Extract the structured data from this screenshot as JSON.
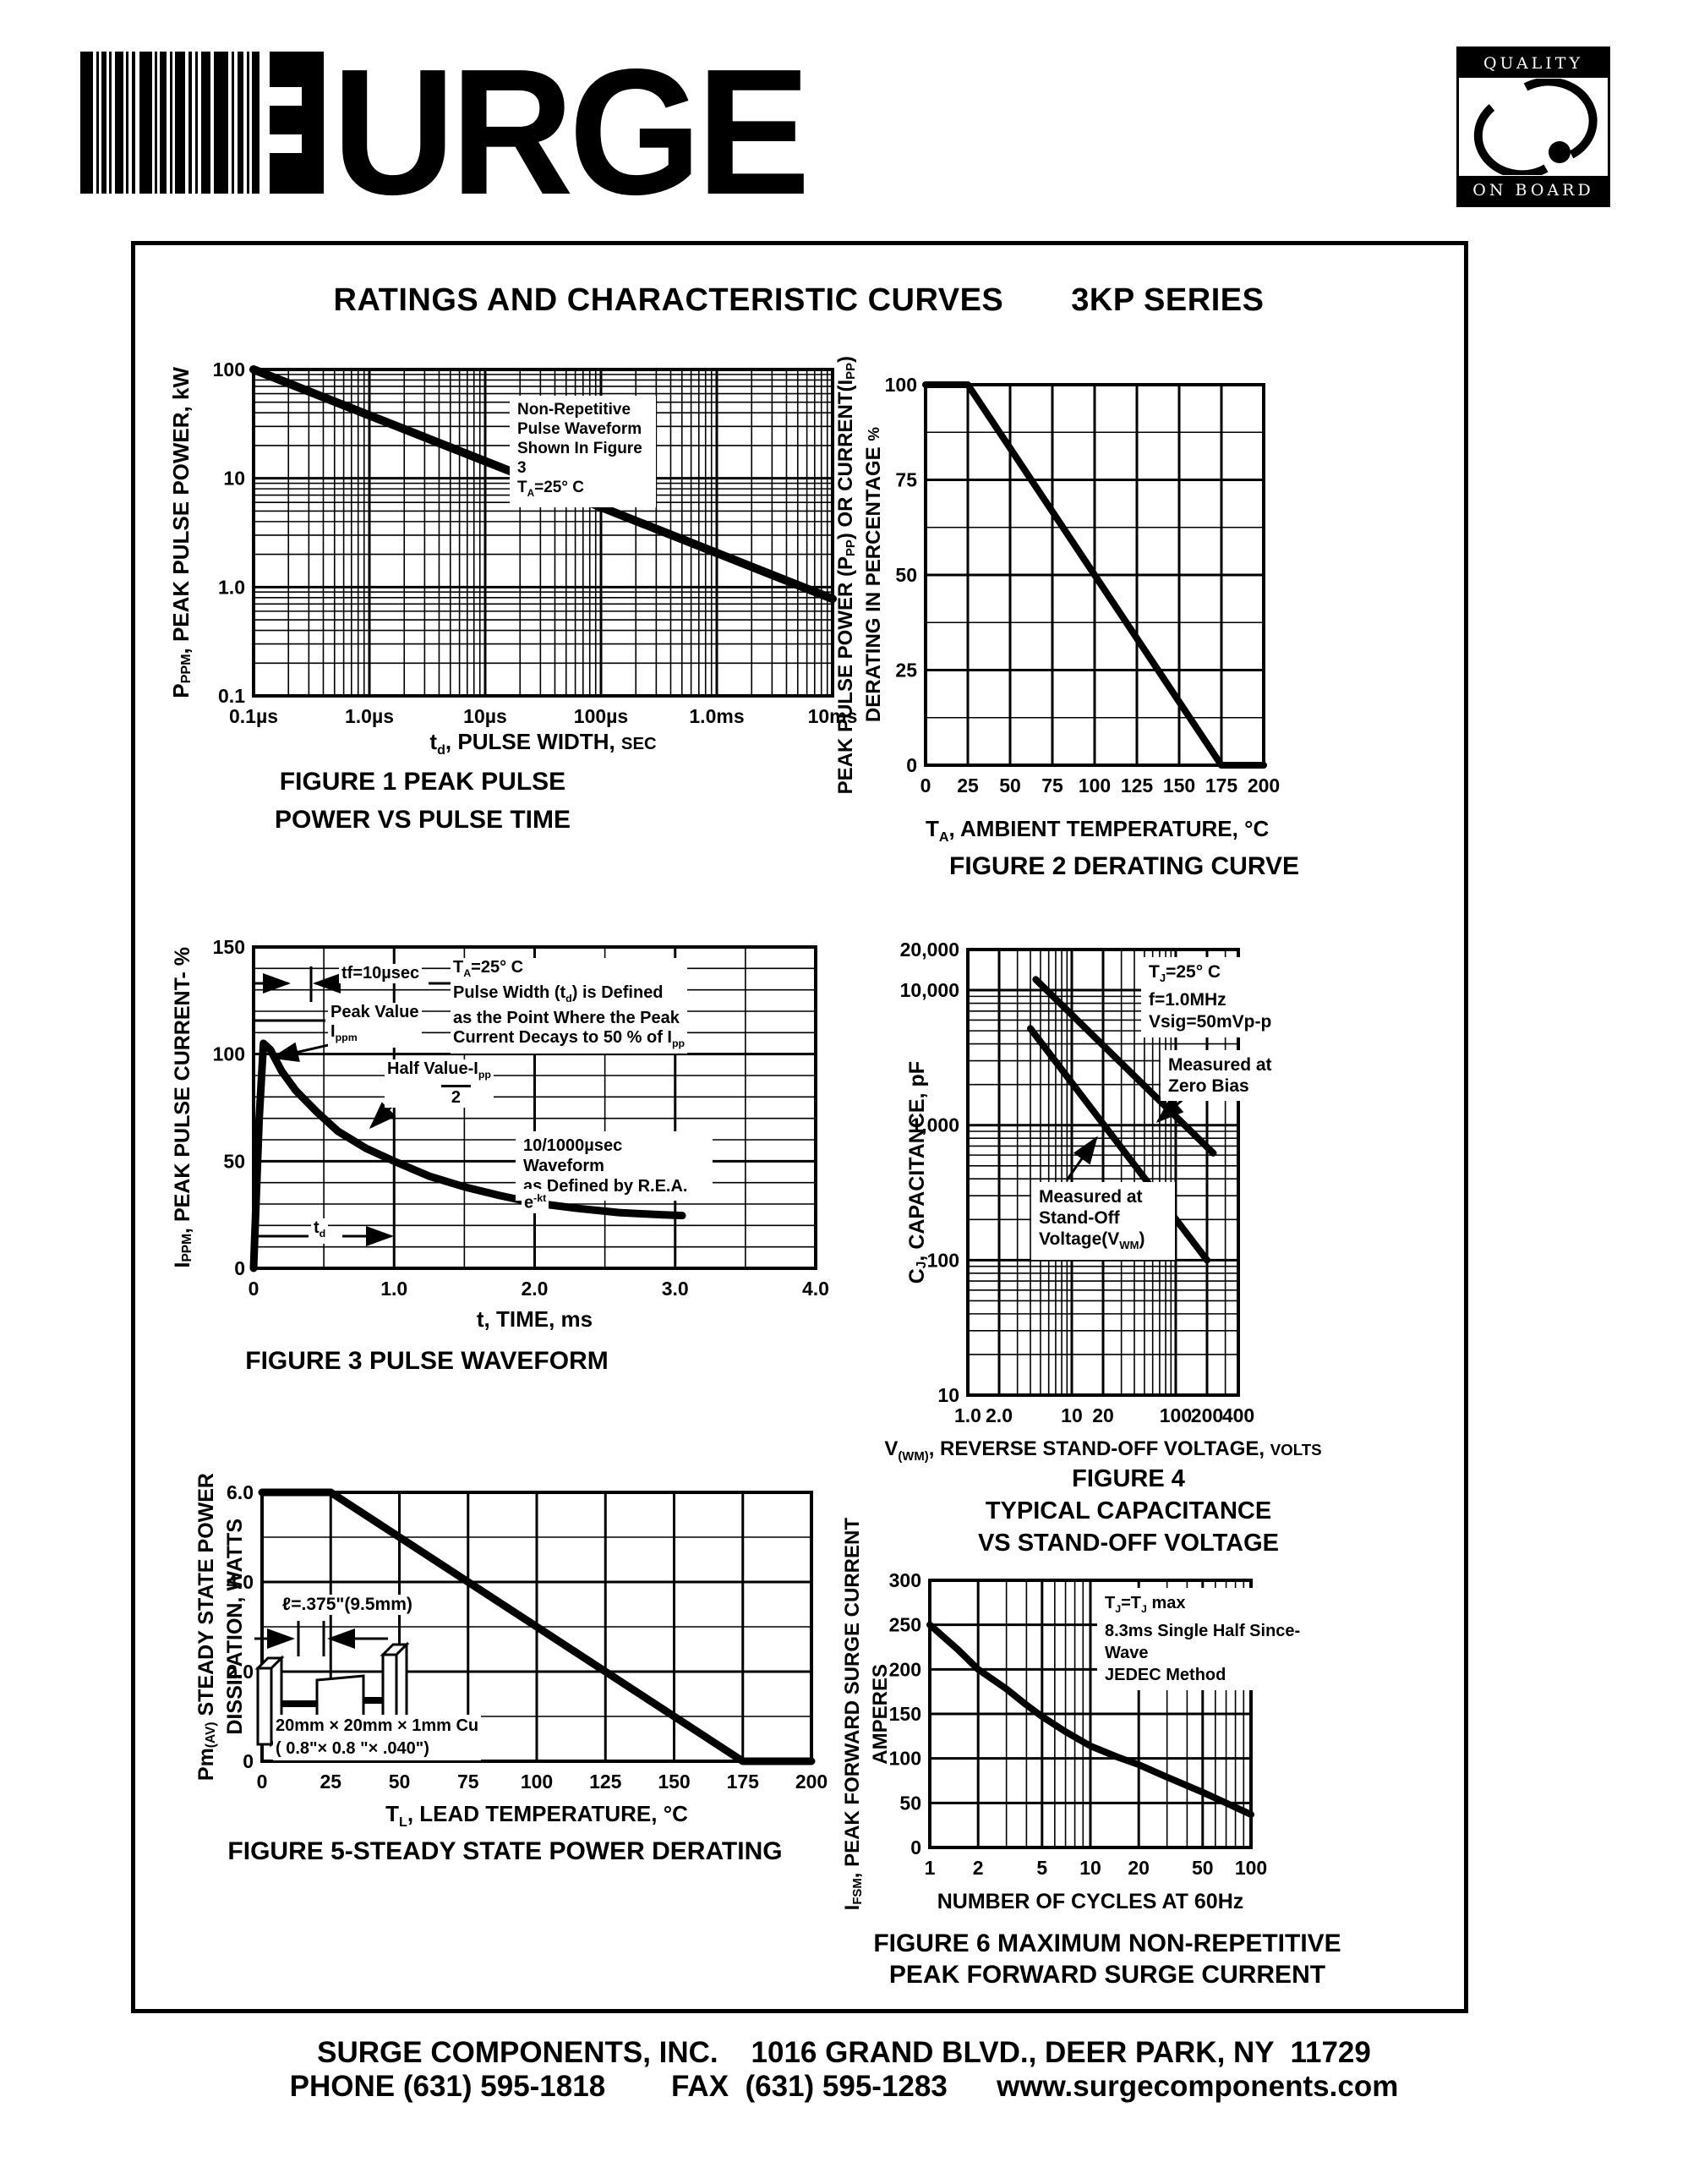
{
  "header": {
    "title_left": "RATINGS AND CHARACTERISTIC CURVES",
    "title_right": "3KP SERIES"
  },
  "logo": {
    "brand": "SURGE",
    "wordmark_text": "URGE"
  },
  "badge": {
    "top_label": "QUALITY",
    "bottom_label": "ON BOARD"
  },
  "footer": {
    "line1": "SURGE COMPONENTS, INC.    1016 GRAND BLVD., DEER PARK, NY  11729",
    "line2": "PHONE (631) 595-1818        FAX  (631) 595-1283      www.surgecomponents.com"
  },
  "chart_data": [
    {
      "type": "line",
      "figure": "Figure 1",
      "caption": [
        "FIGURE 1 PEAK PULSE",
        "POWER VS PULSE TIME"
      ],
      "xlabel": "t~d~, PULSE WIDTH, `SEC`",
      "ylabel": [
        "P~PPM~, PEAK PULSE POWER, kW"
      ],
      "xscale": "log",
      "yscale": "log",
      "xlim": [
        1e-07,
        0.01
      ],
      "ylim": [
        0.1,
        100
      ],
      "xticks": [
        {
          "v": 1e-07,
          "l": "0.1µs"
        },
        {
          "v": 1e-06,
          "l": "1.0µs"
        },
        {
          "v": 1e-05,
          "l": "10µs"
        },
        {
          "v": 0.0001,
          "l": "100µs"
        },
        {
          "v": 0.001,
          "l": "1.0ms"
        },
        {
          "v": 0.01,
          "l": "10ms"
        }
      ],
      "yticks": [
        {
          "v": 100,
          "l": "100"
        },
        {
          "v": 10,
          "l": "10"
        },
        {
          "v": 1,
          "l": "1.0"
        },
        {
          "v": 0.1,
          "l": "0.1"
        }
      ],
      "series": [
        {
          "name": "peak-pulse-power-vs-pulse-width",
          "points": [
            [
              1e-07,
              100
            ],
            [
              0.01,
              0.78
            ]
          ]
        }
      ],
      "annotations": [
        {
          "lines": [
            "Non-Repetitive",
            "Pulse Waveform",
            "Shown In Figure 3",
            "T~A~=25° C"
          ]
        }
      ]
    },
    {
      "type": "line",
      "figure": "Figure 2",
      "caption": [
        "FIGURE 2 DERATING CURVE"
      ],
      "xlabel": "T~A~, AMBIENT  TEMPERATURE, °C",
      "ylabel": [
        "PEAK PULSE POWER (P~PP~) OR CURRENT(I~PP~)",
        "DERATING IN PERCENTAGE `%`"
      ],
      "xscale": "linear",
      "yscale": "linear",
      "xlim": [
        0,
        200
      ],
      "ylim": [
        0,
        100
      ],
      "xticks": [
        {
          "v": 0,
          "l": "0"
        },
        {
          "v": 25,
          "l": "25"
        },
        {
          "v": 50,
          "l": "50"
        },
        {
          "v": 75,
          "l": "75"
        },
        {
          "v": 100,
          "l": "100"
        },
        {
          "v": 125,
          "l": "125"
        },
        {
          "v": 150,
          "l": "150"
        },
        {
          "v": 175,
          "l": "175"
        },
        {
          "v": 200,
          "l": "200"
        }
      ],
      "yticks": [
        {
          "v": 100,
          "l": "100"
        },
        {
          "v": 75,
          "l": "75"
        },
        {
          "v": 50,
          "l": "50"
        },
        {
          "v": 25,
          "l": "25"
        },
        {
          "v": 0,
          "l": "0"
        }
      ],
      "yminor": 12.5,
      "series": [
        {
          "name": "derating-curve",
          "points": [
            [
              0,
              100
            ],
            [
              25,
              100
            ],
            [
              175,
              0
            ],
            [
              200,
              0
            ]
          ]
        }
      ],
      "annotations": []
    },
    {
      "type": "line",
      "figure": "Figure 3",
      "caption": [
        "FIGURE 3  PULSE WAVEFORM"
      ],
      "xlabel": "t, TIME, ms",
      "ylabel": [
        "I~PPM~, PEAK PULSE CURRENT- %"
      ],
      "xscale": "linear",
      "yscale": "linear",
      "xlim": [
        0,
        4
      ],
      "ylim": [
        0,
        150
      ],
      "xticks": [
        {
          "v": 0,
          "l": "0"
        },
        {
          "v": 1,
          "l": "1.0"
        },
        {
          "v": 2,
          "l": "2.0"
        },
        {
          "v": 3,
          "l": "3.0"
        },
        {
          "v": 4,
          "l": "4.0"
        }
      ],
      "yticks": [
        {
          "v": 150,
          "l": "150"
        },
        {
          "v": 100,
          "l": "100"
        },
        {
          "v": 50,
          "l": "50"
        },
        {
          "v": 0,
          "l": "0"
        }
      ],
      "xminor": 0.5,
      "yminor": 10,
      "series": [
        {
          "name": "10/1000usec-pulse-waveform",
          "points": [
            [
              0,
              0
            ],
            [
              0.04,
              70
            ],
            [
              0.07,
              105
            ],
            [
              0.12,
              102
            ],
            [
              0.2,
              92
            ],
            [
              0.3,
              83
            ],
            [
              0.45,
              73
            ],
            [
              0.6,
              64
            ],
            [
              0.8,
              56
            ],
            [
              1,
              50
            ],
            [
              1.25,
              43
            ],
            [
              1.5,
              38
            ],
            [
              1.75,
              34
            ],
            [
              2,
              30.5
            ],
            [
              2.3,
              28
            ],
            [
              2.6,
              26
            ],
            [
              2.9,
              25
            ],
            [
              3.05,
              24.6
            ]
          ]
        }
      ],
      "annotations": [
        {
          "lines": [
            "tf=10µsec"
          ]
        },
        {
          "lines": [
            "Peak Value",
            "I~ppm~"
          ]
        },
        {
          "lines": [
            "Half Value-I~pp~",
            "2"
          ],
          "frac": true
        },
        {
          "lines": [
            "T~A~=25° C",
            "Pulse Width (t~d~) is Defined",
            "as the Point Where the Peak",
            "Current Decays to 50 % of I~pp~"
          ]
        },
        {
          "lines": [
            "10/1000µsec Waveform",
            "as Defined by R.E.A."
          ]
        },
        {
          "lines": [
            "e^-kt^"
          ]
        },
        {
          "lines": [
            "t~d~"
          ]
        }
      ]
    },
    {
      "type": "line",
      "figure": "Figure 4",
      "caption": [
        "FIGURE 4",
        "TYPICAL CAPACITANCE",
        "VS STAND-OFF VOLTAGE"
      ],
      "xlabel": "V~(WM)~, REVERSE STAND-OFF VOLTAGE, `VOLTS`",
      "ylabel": [
        "C~J~, CAPACITANCE, pF"
      ],
      "xscale": "log",
      "yscale": "log",
      "xlim": [
        1,
        400
      ],
      "ylim": [
        10,
        20000
      ],
      "xticks": [
        {
          "v": 1,
          "l": "1.0"
        },
        {
          "v": 2,
          "l": "2.0"
        },
        {
          "v": 10,
          "l": "10"
        },
        {
          "v": 20,
          "l": "20"
        },
        {
          "v": 100,
          "l": "100"
        },
        {
          "v": 200,
          "l": "200"
        },
        {
          "v": 400,
          "l": "400"
        }
      ],
      "yticks": [
        {
          "v": 20000,
          "l": "20,000"
        },
        {
          "v": 10000,
          "l": "10,000"
        },
        {
          "v": 1000,
          "l": "1,000"
        },
        {
          "v": 100,
          "l": "100"
        },
        {
          "v": 10,
          "l": "10"
        }
      ],
      "series": [
        {
          "name": "measured-at-zero-bias",
          "points": [
            [
              4.5,
              12000
            ],
            [
              230,
              620
            ]
          ]
        },
        {
          "name": "measured-at-stand-off-voltage",
          "points": [
            [
              4,
              5200
            ],
            [
              200,
              100
            ]
          ]
        }
      ],
      "annotations": [
        {
          "lines": [
            "T~J~=25° C",
            "f=1.0MHz",
            "Vsig=50mVp-p"
          ]
        },
        {
          "lines": [
            "Measured at",
            "Zero Bias"
          ]
        },
        {
          "lines": [
            "Measured at",
            "Stand-Off",
            "Voltage(V~WM~)"
          ]
        }
      ]
    },
    {
      "type": "line",
      "figure": "Figure 5",
      "caption": [
        "FIGURE 5-STEADY STATE POWER DERATING"
      ],
      "xlabel": "T~L~, LEAD  TEMPERATURE, °C",
      "ylabel": [
        "Pm~(AV)~ STEADY STATE POWER",
        "DISSIPATION, WATTS"
      ],
      "xscale": "linear",
      "yscale": "linear",
      "xlim": [
        0,
        200
      ],
      "ylim": [
        0,
        6
      ],
      "xticks": [
        {
          "v": 0,
          "l": "0"
        },
        {
          "v": 25,
          "l": "25"
        },
        {
          "v": 50,
          "l": "50"
        },
        {
          "v": 75,
          "l": "75"
        },
        {
          "v": 100,
          "l": "100"
        },
        {
          "v": 125,
          "l": "125"
        },
        {
          "v": 150,
          "l": "150"
        },
        {
          "v": 175,
          "l": "175"
        },
        {
          "v": 200,
          "l": "200"
        }
      ],
      "yticks": [
        {
          "v": 6,
          "l": "6.0"
        },
        {
          "v": 4,
          "l": "4.0"
        },
        {
          "v": 2,
          "l": "2.0"
        },
        {
          "v": 0,
          "l": "0"
        }
      ],
      "yminor": 1,
      "series": [
        {
          "name": "steady-state-power-derating",
          "points": [
            [
              0,
              6
            ],
            [
              25,
              6
            ],
            [
              175,
              0
            ],
            [
              200,
              0
            ]
          ]
        }
      ],
      "annotations": [
        {
          "lines": [
            "ℓ=.375\"(9.5mm)"
          ]
        },
        {
          "lines": [
            "20mm × 20mm × 1mm Cu",
            "( 0.8\"× 0.8 \"× .040\")"
          ]
        }
      ]
    },
    {
      "type": "line",
      "figure": "Figure 6",
      "caption": [
        "FIGURE 6  MAXIMUM NON-REPETITIVE",
        "PEAK FORWARD SURGE CURRENT"
      ],
      "xlabel": "NUMBER  OF  CYCLES  AT  60Hz",
      "ylabel": [
        "I~FSM~, PEAK FORWARD SURGE CURRENT",
        "AMPERES"
      ],
      "xscale": "log",
      "yscale": "linear",
      "xlim": [
        1,
        100
      ],
      "ylim": [
        0,
        300
      ],
      "xticks": [
        {
          "v": 1,
          "l": "1"
        },
        {
          "v": 2,
          "l": "2"
        },
        {
          "v": 5,
          "l": "5"
        },
        {
          "v": 10,
          "l": "10"
        },
        {
          "v": 20,
          "l": "20"
        },
        {
          "v": 50,
          "l": "50"
        },
        {
          "v": 100,
          "l": "100"
        }
      ],
      "yticks": [
        {
          "v": 300,
          "l": "300"
        },
        {
          "v": 250,
          "l": "250"
        },
        {
          "v": 200,
          "l": "200"
        },
        {
          "v": 150,
          "l": "150"
        },
        {
          "v": 100,
          "l": "100"
        },
        {
          "v": 50,
          "l": "50"
        },
        {
          "v": 0,
          "l": "0"
        }
      ],
      "series": [
        {
          "name": "max-non-repetitive-peak-forward-surge-current",
          "points": [
            [
              1,
              250
            ],
            [
              1.5,
              222
            ],
            [
              2,
              200
            ],
            [
              3,
              178
            ],
            [
              4,
              160
            ],
            [
              5,
              147
            ],
            [
              7,
              130
            ],
            [
              10,
              114
            ],
            [
              15,
              101
            ],
            [
              20,
              93
            ],
            [
              30,
              79
            ],
            [
              50,
              62
            ],
            [
              70,
              50
            ],
            [
              100,
              37
            ]
          ]
        }
      ],
      "annotations": [
        {
          "lines": [
            "T~J~=T~J~ max",
            "8.3ms Single Half Since-Wave",
            "JEDEC Method"
          ]
        }
      ]
    }
  ]
}
